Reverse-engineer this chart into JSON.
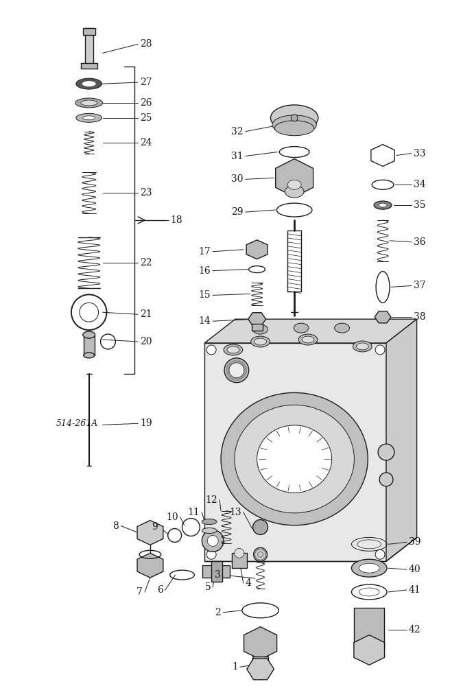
{
  "bg_color": "#ffffff",
  "lc": "#1a1a1a",
  "fig_w": 6.56,
  "fig_h": 10.0,
  "ref_code": "514-261A",
  "label_fs": 10,
  "ref_fs": 9
}
